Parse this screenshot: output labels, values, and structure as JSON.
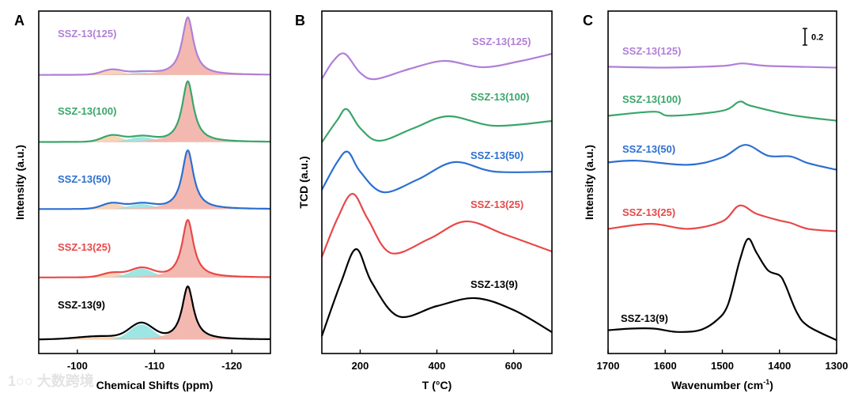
{
  "watermark": "大数跨境",
  "chart_data": [
    {
      "panel": "A",
      "type": "line",
      "xlabel": "Chemical Shifts (ppm)",
      "ylabel": "Intensity (a.u.)",
      "xlim": [
        -95,
        -125
      ],
      "ylim": [
        0,
        5.41
      ],
      "xticks": [
        "-100",
        "-110",
        "-120"
      ],
      "xtick_values": [
        -100,
        -110,
        -120
      ],
      "fill_colors": {
        "main": "#f2b5ac",
        "mid": "#86e0dc",
        "low": "#f5c9a4"
      },
      "series": [
        {
          "name": "SSZ-13(125)",
          "color": "#b07fd8",
          "offset": 4.4,
          "components": [
            {
              "role": "low",
              "center": -104.5,
              "width": 1.3,
              "height": 0.08
            },
            {
              "role": "mid",
              "center": -108.3,
              "width": 1.6,
              "height": 0.04
            },
            {
              "role": "main",
              "center": -114.3,
              "width": 0.9,
              "height": 0.91
            }
          ]
        },
        {
          "name": "SSZ-13(100)",
          "color": "#3aa56a",
          "offset": 3.34,
          "components": [
            {
              "role": "low",
              "center": -104.5,
              "width": 1.3,
              "height": 0.1
            },
            {
              "role": "mid",
              "center": -108.3,
              "width": 1.6,
              "height": 0.08
            },
            {
              "role": "main",
              "center": -114.3,
              "width": 0.9,
              "height": 0.96
            }
          ]
        },
        {
          "name": "SSZ-13(50)",
          "color": "#2c6fd1",
          "offset": 2.28,
          "components": [
            {
              "role": "low",
              "center": -104.5,
              "width": 1.3,
              "height": 0.09
            },
            {
              "role": "mid",
              "center": -108.3,
              "width": 1.6,
              "height": 0.08
            },
            {
              "role": "main",
              "center": -114.3,
              "width": 0.9,
              "height": 0.93
            }
          ]
        },
        {
          "name": "SSZ-13(25)",
          "color": "#e84848",
          "offset": 1.2,
          "components": [
            {
              "role": "low",
              "center": -104.5,
              "width": 1.3,
              "height": 0.07
            },
            {
              "role": "mid",
              "center": -108.3,
              "width": 1.5,
              "height": 0.14
            },
            {
              "role": "main",
              "center": -114.3,
              "width": 0.9,
              "height": 0.91
            }
          ]
        },
        {
          "name": "SSZ-13(9)",
          "color": "#000000",
          "offset": 0.22,
          "components": [
            {
              "role": "low",
              "center": -103.0,
              "width": 3.0,
              "height": 0.05
            },
            {
              "role": "mid",
              "center": -108.3,
              "width": 1.5,
              "height": 0.24
            },
            {
              "role": "main",
              "center": -114.3,
              "width": 0.9,
              "height": 0.84
            }
          ]
        }
      ]
    },
    {
      "panel": "B",
      "type": "line",
      "xlabel": "T (°C)",
      "ylabel": "TCD (a.u.)",
      "xlim": [
        100,
        700
      ],
      "ylim": [
        0,
        4.33
      ],
      "xticks": [
        "200",
        "400",
        "600"
      ],
      "xtick_values": [
        200,
        400,
        600
      ],
      "series": [
        {
          "name": "SSZ-13(125)",
          "color": "#b07fd8",
          "points": [
            [
              100,
              3.47
            ],
            [
              130,
              3.7
            ],
            [
              160,
              3.79
            ],
            [
              200,
              3.55
            ],
            [
              240,
              3.47
            ],
            [
              330,
              3.6
            ],
            [
              420,
              3.7
            ],
            [
              520,
              3.62
            ],
            [
              620,
              3.7
            ],
            [
              700,
              3.79
            ]
          ]
        },
        {
          "name": "SSZ-13(100)",
          "color": "#3aa56a",
          "points": [
            [
              100,
              2.67
            ],
            [
              140,
              2.95
            ],
            [
              165,
              3.09
            ],
            [
              200,
              2.85
            ],
            [
              250,
              2.69
            ],
            [
              340,
              2.85
            ],
            [
              430,
              3.0
            ],
            [
              550,
              2.88
            ],
            [
              700,
              2.94
            ]
          ]
        },
        {
          "name": "SSZ-13(50)",
          "color": "#2c6fd1",
          "points": [
            [
              100,
              2.07
            ],
            [
              140,
              2.42
            ],
            [
              168,
              2.55
            ],
            [
              200,
              2.3
            ],
            [
              260,
              2.04
            ],
            [
              350,
              2.2
            ],
            [
              445,
              2.42
            ],
            [
              550,
              2.3
            ],
            [
              700,
              2.3
            ]
          ]
        },
        {
          "name": "SSZ-13(25)",
          "color": "#e84848",
          "points": [
            [
              100,
              1.22
            ],
            [
              140,
              1.7
            ],
            [
              180,
              2.02
            ],
            [
              220,
              1.7
            ],
            [
              280,
              1.27
            ],
            [
              380,
              1.45
            ],
            [
              475,
              1.67
            ],
            [
              580,
              1.5
            ],
            [
              700,
              1.29
            ]
          ]
        },
        {
          "name": "SSZ-13(9)",
          "color": "#000000",
          "points": [
            [
              100,
              0.22
            ],
            [
              150,
              0.9
            ],
            [
              190,
              1.32
            ],
            [
              230,
              0.9
            ],
            [
              300,
              0.47
            ],
            [
              400,
              0.6
            ],
            [
              500,
              0.7
            ],
            [
              600,
              0.55
            ],
            [
              700,
              0.27
            ]
          ]
        }
      ]
    },
    {
      "panel": "C",
      "type": "line",
      "xlabel": "Wavenumber (cm",
      "xlabel_sup": "-1",
      "xlabel_end": ")",
      "ylabel": "Intensity (a.u.)",
      "xlim": [
        1700,
        1300
      ],
      "ylim": [
        0,
        4.12
      ],
      "xticks": [
        "1700",
        "1600",
        "1500",
        "1400",
        "1300"
      ],
      "xtick_values": [
        1700,
        1600,
        1500,
        1400,
        1300
      ],
      "scale_bar": {
        "label": "0.2",
        "value": 0.2
      },
      "series": [
        {
          "name": "SSZ-13(125)",
          "color": "#b07fd8",
          "points": [
            [
              1700,
              3.45
            ],
            [
              1600,
              3.44
            ],
            [
              1500,
              3.46
            ],
            [
              1465,
              3.49
            ],
            [
              1420,
              3.46
            ],
            [
              1300,
              3.44
            ]
          ]
        },
        {
          "name": "SSZ-13(100)",
          "color": "#3aa56a",
          "points": [
            [
              1700,
              2.86
            ],
            [
              1620,
              2.91
            ],
            [
              1590,
              2.86
            ],
            [
              1500,
              2.92
            ],
            [
              1470,
              3.03
            ],
            [
              1450,
              2.98
            ],
            [
              1380,
              2.87
            ],
            [
              1300,
              2.8
            ]
          ]
        },
        {
          "name": "SSZ-13(50)",
          "color": "#2c6fd1",
          "points": [
            [
              1700,
              2.3
            ],
            [
              1650,
              2.32
            ],
            [
              1560,
              2.27
            ],
            [
              1500,
              2.36
            ],
            [
              1460,
              2.51
            ],
            [
              1420,
              2.38
            ],
            [
              1380,
              2.37
            ],
            [
              1350,
              2.29
            ],
            [
              1300,
              2.21
            ]
          ]
        },
        {
          "name": "SSZ-13(25)",
          "color": "#e84848",
          "points": [
            [
              1700,
              1.5
            ],
            [
              1625,
              1.56
            ],
            [
              1560,
              1.5
            ],
            [
              1500,
              1.59
            ],
            [
              1470,
              1.78
            ],
            [
              1440,
              1.68
            ],
            [
              1400,
              1.6
            ],
            [
              1380,
              1.57
            ],
            [
              1350,
              1.5
            ],
            [
              1300,
              1.47
            ]
          ]
        },
        {
          "name": "SSZ-13(9)",
          "color": "#000000",
          "points": [
            [
              1700,
              0.28
            ],
            [
              1660,
              0.3
            ],
            [
              1620,
              0.3
            ],
            [
              1580,
              0.26
            ],
            [
              1540,
              0.28
            ],
            [
              1510,
              0.4
            ],
            [
              1490,
              0.59
            ],
            [
              1470,
              1.11
            ],
            [
              1455,
              1.38
            ],
            [
              1440,
              1.21
            ],
            [
              1420,
              1.0
            ],
            [
              1400,
              0.94
            ],
            [
              1390,
              0.83
            ],
            [
              1370,
              0.5
            ],
            [
              1350,
              0.33
            ],
            [
              1300,
              0.16
            ]
          ]
        }
      ]
    }
  ]
}
